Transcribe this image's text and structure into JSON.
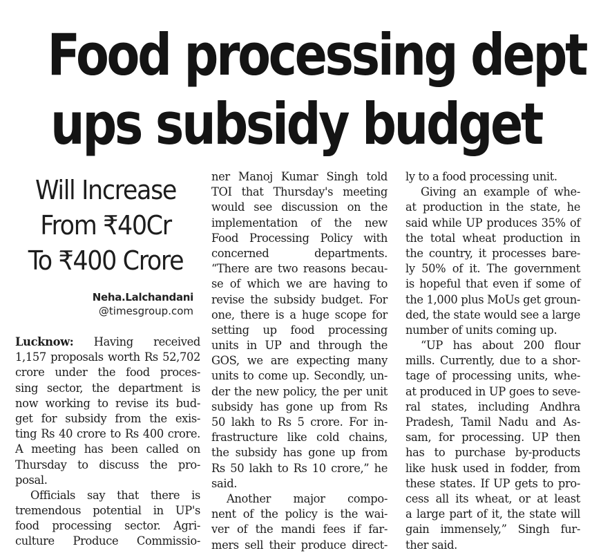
{
  "headline": {
    "line1": "Food processing dept",
    "line2": "ups subsidy budget"
  },
  "subheadline": {
    "line1": "Will Increase",
    "line2": "From ₹40Cr",
    "line3": "To ₹400 Crore"
  },
  "byline": {
    "name": "Neha.Lalchandani",
    "handle": "@timesgroup.com"
  },
  "column1": {
    "lead": "Lucknow:",
    "lines": [
      " Having received",
      "1,157 proposals worth Rs 52,702",
      "crore under the food proces-",
      "sing sector, the department is",
      "now working to revise its bud-",
      "get for subsidy from the exis-",
      "ting Rs 40 crore to Rs 400 crore.",
      "A meeting has been called on",
      "Thursday to discuss the pro-",
      "posal.",
      "Officials say that there is",
      "tremendous potential in UP's",
      "food processing sector. Agri-",
      "culture Produce Commissio-"
    ]
  },
  "column2": {
    "lines": [
      "ner Manoj Kumar Singh told",
      "TOI that Thursday's meeting",
      "would see discussion on the",
      "implementation of the new",
      "Food Processing Policy with",
      "concerned departments.",
      "“There are two reasons becau-",
      "se of which we are having to",
      "revise the subsidy budget. For",
      "one, there is a huge scope for",
      "setting up food processing",
      "units in UP and through the",
      "GOS, we are expecting many",
      "units to come up. Secondly, un-",
      "der the new policy, the per unit",
      "subsidy has gone up from Rs",
      "50 lakh to Rs 5 crore. For in-",
      "frastructure like cold chains,",
      "the subsidy has gone up from",
      "Rs 50 lakh to Rs 10 crore,” he",
      "said.",
      "Another major compo-",
      "nent of the policy is the wai-",
      "ver of the mandi fees if far-",
      "mers sell their produce direct-"
    ]
  },
  "column3": {
    "lines": [
      "ly to a food processing unit.",
      "Giving an example of whe-",
      "at production in the state, he",
      "said while UP produces 35% of",
      "the total wheat production in",
      "the country, it processes bare-",
      "ly 50% of it. The government",
      "is hopeful that even if some of",
      "the 1,000 plus MoUs get groun-",
      "ded, the state would see a large",
      "number of units coming up.",
      "“UP has about 200 flour",
      "mills. Currently, due to a shor-",
      "tage of processing units, whe-",
      "at produced in UP goes to seve-",
      "ral states, including Andhra",
      "Pradesh, Tamil Nadu and As-",
      "sam, for processing. UP then",
      "has to purchase by-products",
      "like husk used in fodder, from",
      "these states. If UP gets to pro-",
      "cess all its wheat, or at least",
      "a large part of it, the state will",
      "gain immensely,” Singh fur-",
      "ther said."
    ]
  }
}
